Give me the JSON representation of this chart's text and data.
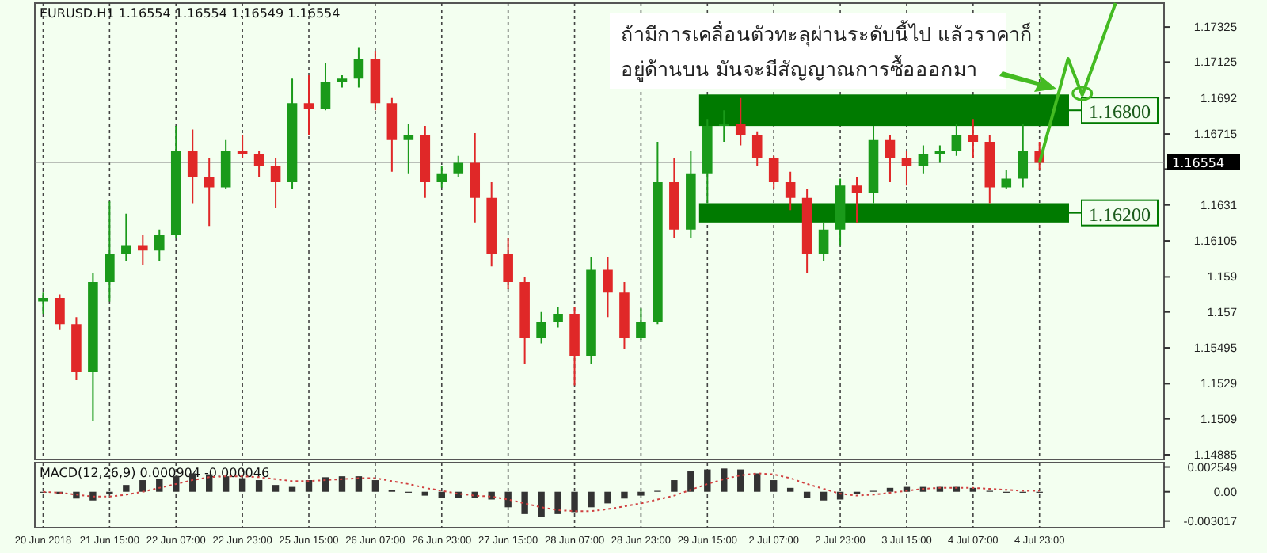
{
  "chart_data": [
    {
      "type": "candlestick",
      "title": "EURUSD.H1 1.16554 1.16554 1.16549 1.16554",
      "categories": [
        null,
        null,
        null,
        null,
        null,
        null,
        null,
        null,
        null,
        null,
        null,
        null,
        null,
        null,
        null,
        null,
        null,
        null,
        null,
        null,
        null,
        null,
        null,
        null,
        null,
        null,
        null,
        null,
        null,
        null,
        null,
        null,
        null,
        null,
        null,
        null,
        null,
        null,
        null,
        null,
        null,
        null,
        null,
        null,
        null,
        null,
        null,
        null,
        null,
        null,
        null,
        null,
        null,
        null,
        null,
        null,
        null,
        null,
        null,
        null,
        null,
        null,
        null,
        null,
        null,
        null,
        null,
        null
      ],
      "ohlc": [
        [
          1.1576,
          1.1581,
          1.1569,
          1.1578
        ],
        [
          1.1578,
          1.158,
          1.156,
          1.1563
        ],
        [
          1.1563,
          1.1567,
          1.1531,
          1.1536
        ],
        [
          1.1536,
          1.1592,
          1.1508,
          1.1587
        ],
        [
          1.1587,
          1.1633,
          1.1576,
          1.1603
        ],
        [
          1.1603,
          1.1626,
          1.1599,
          1.1608
        ],
        [
          1.1608,
          1.1614,
          1.1597,
          1.1605
        ],
        [
          1.1605,
          1.1617,
          1.1599,
          1.1614
        ],
        [
          1.1614,
          1.1676,
          1.1612,
          1.1662
        ],
        [
          1.1662,
          1.1674,
          1.1632,
          1.1647
        ],
        [
          1.1647,
          1.1658,
          1.1619,
          1.1641
        ],
        [
          1.1641,
          1.1668,
          1.164,
          1.1662
        ],
        [
          1.1662,
          1.1671,
          1.1658,
          1.166
        ],
        [
          1.166,
          1.1662,
          1.1647,
          1.1653
        ],
        [
          1.1653,
          1.1658,
          1.1629,
          1.1644
        ],
        [
          1.1644,
          1.1703,
          1.164,
          1.1689
        ],
        [
          1.1689,
          1.1705,
          1.1671,
          1.1686
        ],
        [
          1.1686,
          1.1712,
          1.1685,
          1.1701
        ],
        [
          1.1701,
          1.1705,
          1.1698,
          1.1703
        ],
        [
          1.1703,
          1.1721,
          1.1698,
          1.1714
        ],
        [
          1.1714,
          1.1719,
          1.1685,
          1.1689
        ],
        [
          1.1689,
          1.1692,
          1.165,
          1.1668
        ],
        [
          1.1668,
          1.1677,
          1.1649,
          1.1671
        ],
        [
          1.1671,
          1.1676,
          1.1635,
          1.1644
        ],
        [
          1.1644,
          1.1653,
          1.1641,
          1.1649
        ],
        [
          1.1649,
          1.1659,
          1.1647,
          1.1655
        ],
        [
          1.1655,
          1.1672,
          1.1621,
          1.1635
        ],
        [
          1.1635,
          1.1644,
          1.1596,
          1.1603
        ],
        [
          1.1603,
          1.1612,
          1.1583,
          1.1587
        ],
        [
          1.1587,
          1.159,
          1.154,
          1.1555
        ],
        [
          1.1555,
          1.157,
          1.1552,
          1.1564
        ],
        [
          1.1564,
          1.1573,
          1.1561,
          1.1569
        ],
        [
          1.1569,
          1.1573,
          1.1528,
          1.1545
        ],
        [
          1.1545,
          1.1601,
          1.154,
          1.1594
        ],
        [
          1.1594,
          1.1601,
          1.1567,
          1.1581
        ],
        [
          1.1581,
          1.1587,
          1.1549,
          1.1555
        ],
        [
          1.1555,
          1.1572,
          1.1554,
          1.1564
        ],
        [
          1.1564,
          1.1667,
          1.1563,
          1.1644
        ],
        [
          1.1644,
          1.1658,
          1.1612,
          1.1617
        ],
        [
          1.1617,
          1.1662,
          1.1612,
          1.1649
        ],
        [
          1.1649,
          1.168,
          1.1632,
          1.1676
        ],
        [
          1.1676,
          1.1685,
          1.1667,
          1.1677
        ],
        [
          1.1677,
          1.1692,
          1.1665,
          1.1671
        ],
        [
          1.1671,
          1.1673,
          1.1653,
          1.1658
        ],
        [
          1.1658,
          1.1659,
          1.164,
          1.1644
        ],
        [
          1.1644,
          1.165,
          1.1628,
          1.1635
        ],
        [
          1.1635,
          1.164,
          1.1592,
          1.1603
        ],
        [
          1.1603,
          1.1621,
          1.1599,
          1.1617
        ],
        [
          1.1617,
          1.1646,
          1.1608,
          1.1642
        ],
        [
          1.1642,
          1.1647,
          1.1621,
          1.1638
        ],
        [
          1.1638,
          1.1676,
          1.1632,
          1.1668
        ],
        [
          1.1668,
          1.1671,
          1.1644,
          1.1658
        ],
        [
          1.1658,
          1.1662,
          1.1642,
          1.1653
        ],
        [
          1.1653,
          1.1665,
          1.1649,
          1.166
        ],
        [
          1.166,
          1.1665,
          1.1655,
          1.1662
        ],
        [
          1.1662,
          1.1677,
          1.1659,
          1.1671
        ],
        [
          1.1671,
          1.168,
          1.1658,
          1.1667
        ],
        [
          1.1667,
          1.1671,
          1.1632,
          1.1641
        ],
        [
          1.1641,
          1.1651,
          1.164,
          1.1646
        ],
        [
          1.1646,
          1.1677,
          1.1641,
          1.1662
        ],
        [
          1.1662,
          1.1667,
          1.1651,
          1.1655
        ],
        null,
        null,
        null,
        null,
        null,
        null,
        null
      ],
      "ylim": [
        1.14858,
        1.17461
      ],
      "yticks": [
        1.17325,
        1.17125,
        1.1692,
        1.16715,
        {
          "value": 1.16515,
          "label": null
        },
        1.1631,
        1.16105,
        1.159,
        1.157,
        1.15495,
        1.1529,
        1.1509,
        1.14885
      ],
      "tick_labels": "y",
      "grid": "x",
      "ref_lines": [
        {
          "axis": "y",
          "value": 1.16554,
          "label": "1.16554",
          "color": "#808080"
        }
      ],
      "bands": [
        {
          "axis": "y",
          "from": 1.1676,
          "to": 1.1694,
          "label": "1.16800",
          "color": "#007a00"
        },
        {
          "axis": "y",
          "from": 1.1621,
          "to": 1.1632,
          "label": "1.16200",
          "color": "#007a00"
        }
      ],
      "annotations": [
        "ถ้ามีการเคลื่อนตัวทะลุผ่านระดับนี้ไป แล้วราคาก็",
        "อยู่ด้านบน มันจะมีสัญญาณการซื้อออกมา"
      ]
    },
    {
      "type": "bar",
      "title": "MACD(12,26,9) 0.000904 -0.000046",
      "categories": [
        "20 Jun 2018",
        null,
        null,
        null,
        "21 Jun 15:00",
        null,
        null,
        null,
        "22 Jun 07:00",
        null,
        null,
        null,
        "22 Jun 23:00",
        null,
        null,
        null,
        "25 Jun 15:00",
        null,
        null,
        null,
        "26 Jun 07:00",
        null,
        null,
        null,
        "26 Jun 23:00",
        null,
        null,
        null,
        "27 Jun 15:00",
        null,
        null,
        null,
        "28 Jun 07:00",
        null,
        null,
        null,
        "28 Jun 23:00",
        null,
        null,
        null,
        "29 Jun 15:00",
        null,
        null,
        null,
        "2 Jul 07:00",
        null,
        null,
        null,
        "2 Jul 23:00",
        null,
        null,
        null,
        "3 Jul 15:00",
        null,
        null,
        null,
        "4 Jul 07:00",
        null,
        null,
        null,
        "4 Jul 23:00",
        null,
        null,
        null,
        null,
        null,
        null,
        null
      ],
      "series": [
        {
          "type": "bar",
          "color": "#333333",
          "values": [
            -0.0001,
            -0.0002,
            -0.0007,
            -0.0009,
            -0.0002,
            0.0007,
            0.0012,
            0.0013,
            0.0016,
            0.0019,
            0.0018,
            0.0016,
            0.0014,
            0.0012,
            0.0007,
            0.0005,
            0.0012,
            0.0015,
            0.0016,
            0.0016,
            0.0012,
            0.0002,
            -0.0001,
            -0.0004,
            -0.0006,
            -0.0006,
            -0.0006,
            -0.0008,
            -0.0016,
            -0.0023,
            -0.0026,
            -0.0023,
            -0.0021,
            -0.0016,
            -0.0012,
            -0.0007,
            -0.0004,
            0.0001,
            0.0012,
            0.0021,
            0.0023,
            0.0024,
            0.0023,
            0.0019,
            0.0012,
            0.0004,
            -0.0006,
            -0.0009,
            -0.0008,
            -0.0002,
            0.0001,
            0.0004,
            0.0005,
            0.0005,
            0.0005,
            0.0005,
            0.0004,
            0.0001,
            -0.0001,
            -0.0001,
            -0.0001,
            null,
            null,
            null,
            null,
            null,
            null,
            null
          ]
        },
        {
          "type": "line",
          "color": "#d04040",
          "line_style": "dotted",
          "values": [
            0,
            -0.0001,
            -0.0003,
            -0.0005,
            -0.0005,
            -0.0003,
            0,
            0.0004,
            0.0008,
            0.0012,
            0.0015,
            0.0016,
            0.0016,
            0.0015,
            0.0013,
            0.0011,
            0.0011,
            0.0012,
            0.0013,
            0.0014,
            0.0014,
            0.0011,
            0.0008,
            0.0004,
            0.0001,
            -0.0002,
            -0.0004,
            -0.0005,
            -0.0008,
            -0.0012,
            -0.0016,
            -0.0019,
            -0.002,
            -0.002,
            -0.0018,
            -0.0015,
            -0.0012,
            -0.0008,
            -0.0004,
            0.0002,
            0.0008,
            0.0013,
            0.0017,
            0.0019,
            0.0018,
            0.0014,
            0.0008,
            0.0003,
            -0.0002,
            -0.0004,
            -0.0003,
            -0.0001,
            0.0001,
            0.0003,
            0.0004,
            0.0004,
            0.0004,
            0.0003,
            0.0002,
            0.0001,
            0.0001,
            null,
            null,
            null,
            null,
            null,
            null,
            null
          ]
        }
      ],
      "ylim": [
        -0.0037,
        0.003
      ],
      "yticks": [
        {
          "value": 0.002549,
          "label": "0.002549"
        },
        {
          "value": 0,
          "label": "0.00"
        },
        {
          "value": -0.003017,
          "label": "-0.003017"
        }
      ],
      "grid": "x"
    }
  ]
}
